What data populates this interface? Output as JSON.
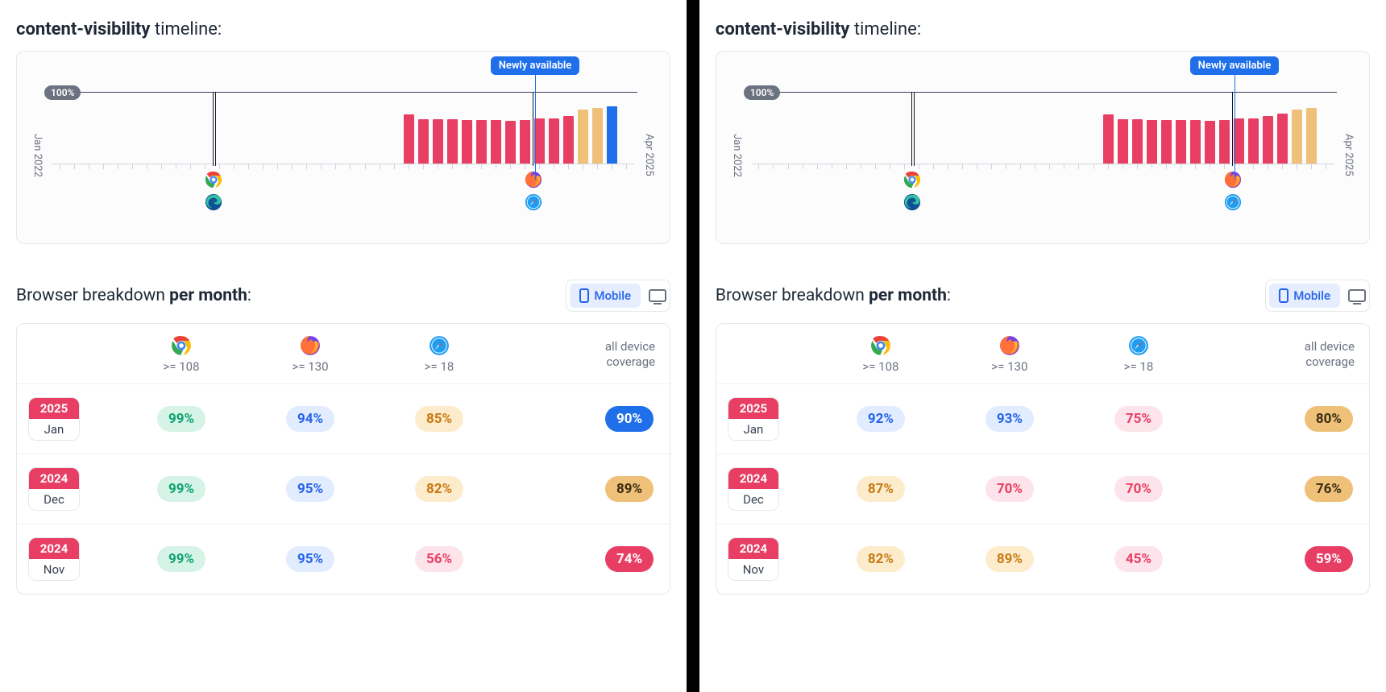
{
  "title_prefix": "content-visibility",
  "title_suffix": " timeline:",
  "badge_100": "100%",
  "flag_text": "Newly available",
  "axis_start": "Jan 2022",
  "axis_end": "Apr 2025",
  "section_prefix": "Browser breakdown ",
  "section_bold": "per month",
  "section_suffix": ":",
  "toggle_mobile": "Mobile",
  "coverage_head_l1": "all device",
  "coverage_head_l2": "coverage",
  "chart": {
    "total_slots": 40,
    "bar_start_index": 24,
    "flag_slot_index": 33,
    "marker_a_slot_index": 11,
    "marker_b_slot_index": 33,
    "flag_color": "#1f6feb",
    "colors": {
      "pink": "#e83e64",
      "tan": "#efc078",
      "blue": "#1f6feb"
    },
    "left_bars": [
      62,
      56,
      56,
      56,
      55,
      55,
      55,
      54,
      55,
      57,
      57,
      60,
      68,
      70,
      72
    ],
    "left_colors": [
      "pink",
      "pink",
      "pink",
      "pink",
      "pink",
      "pink",
      "pink",
      "pink",
      "pink",
      "pink",
      "pink",
      "pink",
      "tan",
      "tan",
      "blue"
    ],
    "right_bars": [
      62,
      56,
      56,
      55,
      55,
      55,
      55,
      54,
      55,
      57,
      57,
      60,
      63,
      68,
      70
    ],
    "right_colors": [
      "pink",
      "pink",
      "pink",
      "pink",
      "pink",
      "pink",
      "pink",
      "pink",
      "pink",
      "pink",
      "pink",
      "pink",
      "pink",
      "tan",
      "tan"
    ]
  },
  "pill_styles": {
    "green": {
      "bg": "#d6f3e7",
      "fg": "#0ea371"
    },
    "blue": {
      "bg": "#e1ecff",
      "fg": "#2563eb"
    },
    "orange": {
      "bg": "#fdeccc",
      "fg": "#c77a12"
    },
    "pinkL": {
      "bg": "#fde4ea",
      "fg": "#e83e64"
    },
    "cov_blue": {
      "bg": "#1f6feb",
      "fg": "#ffffff"
    },
    "cov_tan": {
      "bg": "#efc078",
      "fg": "#3a2d12"
    },
    "cov_pink": {
      "bg": "#e83e64",
      "fg": "#ffffff"
    }
  },
  "browsers": [
    {
      "name": "chrome",
      "version": ">= 108"
    },
    {
      "name": "firefox",
      "version": ">= 130"
    },
    {
      "name": "safari",
      "version": ">= 18"
    }
  ],
  "left_rows": [
    {
      "year": "2025",
      "month": "Jan",
      "cells": [
        {
          "v": "99%",
          "s": "green"
        },
        {
          "v": "94%",
          "s": "blue"
        },
        {
          "v": "85%",
          "s": "orange"
        }
      ],
      "coverage": {
        "v": "90%",
        "s": "cov_blue"
      }
    },
    {
      "year": "2024",
      "month": "Dec",
      "cells": [
        {
          "v": "99%",
          "s": "green"
        },
        {
          "v": "95%",
          "s": "blue"
        },
        {
          "v": "82%",
          "s": "orange"
        }
      ],
      "coverage": {
        "v": "89%",
        "s": "cov_tan"
      }
    },
    {
      "year": "2024",
      "month": "Nov",
      "cells": [
        {
          "v": "99%",
          "s": "green"
        },
        {
          "v": "95%",
          "s": "blue"
        },
        {
          "v": "56%",
          "s": "pinkL"
        }
      ],
      "coverage": {
        "v": "74%",
        "s": "cov_pink"
      }
    }
  ],
  "right_rows": [
    {
      "year": "2025",
      "month": "Jan",
      "cells": [
        {
          "v": "92%",
          "s": "blue"
        },
        {
          "v": "93%",
          "s": "blue"
        },
        {
          "v": "75%",
          "s": "pinkL"
        }
      ],
      "coverage": {
        "v": "80%",
        "s": "cov_tan"
      }
    },
    {
      "year": "2024",
      "month": "Dec",
      "cells": [
        {
          "v": "87%",
          "s": "orange"
        },
        {
          "v": "70%",
          "s": "pinkL"
        },
        {
          "v": "70%",
          "s": "pinkL"
        }
      ],
      "coverage": {
        "v": "76%",
        "s": "cov_tan"
      }
    },
    {
      "year": "2024",
      "month": "Nov",
      "cells": [
        {
          "v": "82%",
          "s": "orange"
        },
        {
          "v": "89%",
          "s": "orange"
        },
        {
          "v": "45%",
          "s": "pinkL"
        }
      ],
      "coverage": {
        "v": "59%",
        "s": "cov_pink"
      }
    }
  ]
}
